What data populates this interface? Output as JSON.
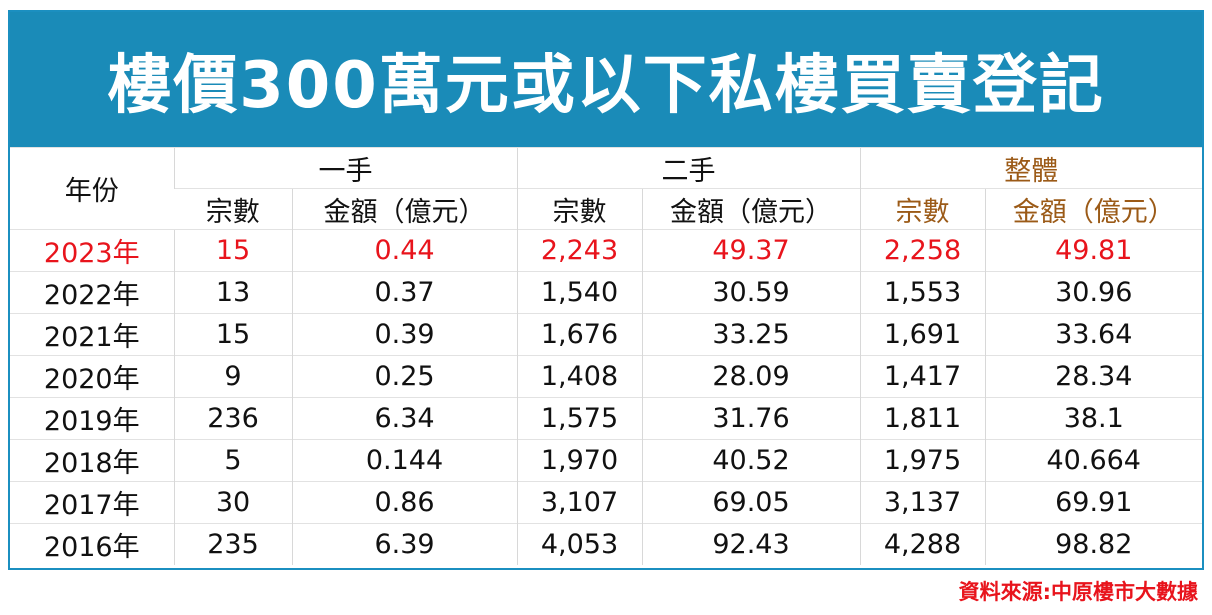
{
  "header": {
    "title": "樓價300萬元或以下私樓買賣登記"
  },
  "table": {
    "year_header": "年份",
    "groups": [
      "一手",
      "二手",
      "整體"
    ],
    "subheaders": [
      "宗數",
      "金額（億元）",
      "宗數",
      "金額（億元）",
      "宗數",
      "金額（億元）"
    ],
    "rows": [
      [
        "2023年",
        "15",
        "0.44",
        "2,243",
        "49.37",
        "2,258",
        "49.81"
      ],
      [
        "2022年",
        "13",
        "0.37",
        "1,540",
        "30.59",
        "1,553",
        "30.96"
      ],
      [
        "2021年",
        "15",
        "0.39",
        "1,676",
        "33.25",
        "1,691",
        "33.64"
      ],
      [
        "2020年",
        "9",
        "0.25",
        "1,408",
        "28.09",
        "1,417",
        "28.34"
      ],
      [
        "2019年",
        "236",
        "6.34",
        "1,575",
        "31.76",
        "1,811",
        "38.1"
      ],
      [
        "2018年",
        "5",
        "0.144",
        "1,970",
        "40.52",
        "1,975",
        "40.664"
      ],
      [
        "2017年",
        "30",
        "0.86",
        "3,107",
        "69.05",
        "3,137",
        "69.91"
      ],
      [
        "2016年",
        "235",
        "6.39",
        "4,053",
        "92.43",
        "4,288",
        "98.82"
      ]
    ]
  },
  "footer": {
    "source": "資料來源:中原樓市大數據"
  }
}
